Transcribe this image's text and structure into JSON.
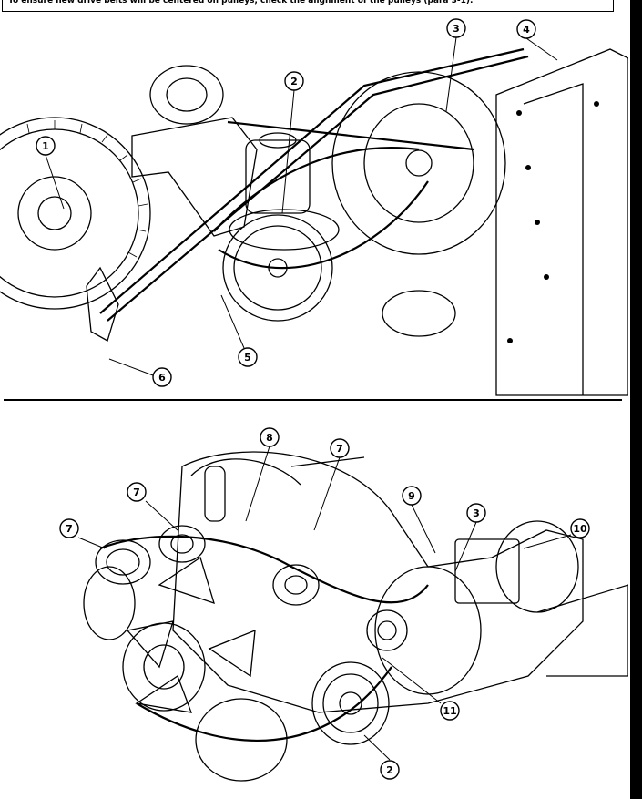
{
  "header": {
    "text": "To ensure new drive belts will be centered on pulleys, check the alignment of the pulleys (para 3-1)."
  },
  "figure_top": {
    "callouts": [
      "1",
      "2",
      "3",
      "4",
      "5",
      "6"
    ]
  },
  "figure_bottom": {
    "callouts": [
      "8",
      "7",
      "7",
      "7",
      "9",
      "3",
      "10",
      "11",
      "2"
    ]
  }
}
